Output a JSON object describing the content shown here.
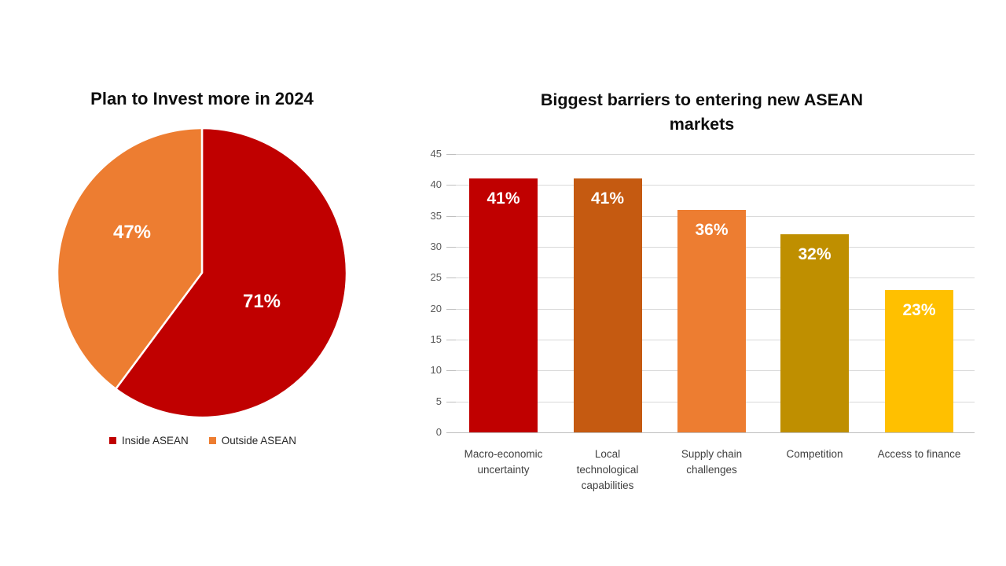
{
  "chart_data": [
    {
      "type": "pie",
      "title": "Plan to Invest more in 2024",
      "slices": [
        {
          "label": "Inside ASEAN",
          "value": 71,
          "display": "71%",
          "color": "#C00000"
        },
        {
          "label": "Outside ASEAN",
          "value": 47,
          "display": "47%",
          "color": "#ED7D31"
        }
      ],
      "legend_position": "bottom",
      "data_label_color": "#FFFFFF"
    },
    {
      "type": "bar",
      "title": "Biggest barriers to entering new ASEAN markets",
      "title_lines": [
        "Biggest barriers to entering new ASEAN",
        "markets"
      ],
      "categories": [
        "Macro-economic uncertainty",
        "Local technological capabilities",
        "Supply chain challenges",
        "Competition",
        "Access to finance"
      ],
      "category_lines": [
        [
          "Macro-economic",
          "uncertainty"
        ],
        [
          "Local",
          "technological",
          "capabilities"
        ],
        [
          "Supply chain",
          "challenges"
        ],
        [
          "Competition"
        ],
        [
          "Access to finance"
        ]
      ],
      "values": [
        41,
        41,
        36,
        32,
        23
      ],
      "value_labels": [
        "41%",
        "41%",
        "36%",
        "32%",
        "23%"
      ],
      "bar_colors": [
        "#C00000",
        "#C55A11",
        "#ED7D31",
        "#BF8F00",
        "#FFC000"
      ],
      "ylim": [
        0,
        45
      ],
      "y_ticks": [
        45,
        40,
        35,
        30,
        25,
        20,
        15,
        10,
        5,
        0
      ],
      "grid": true,
      "xlabel": "",
      "ylabel": "",
      "data_label_color": "#FFFFFF",
      "gridline_color": "#D9D9D9",
      "axis_line_color": "#BFBFBF",
      "tick_label_color": "#595959"
    }
  ]
}
